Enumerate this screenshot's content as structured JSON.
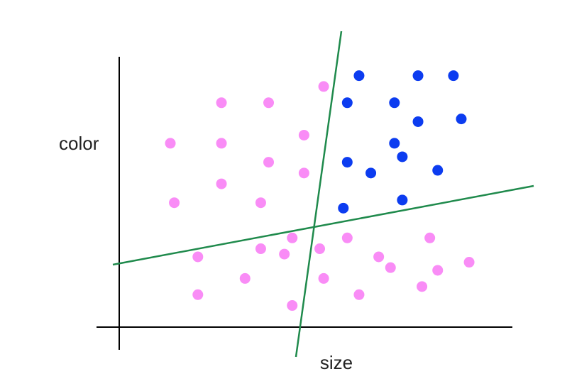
{
  "chart_data": {
    "type": "scatter",
    "x_label": "size",
    "y_label": "color",
    "xlim": [
      0,
      100
    ],
    "ylim": [
      0,
      100
    ],
    "series": [
      {
        "color": "#f98cf6",
        "x": [
          52,
          26,
          38,
          47,
          13,
          26,
          38,
          47,
          26,
          14,
          36,
          44,
          58,
          79,
          20,
          36,
          42,
          51,
          66,
          69,
          89,
          81,
          32,
          52,
          77,
          20,
          61,
          44
        ],
        "values": [
          89,
          83,
          83,
          71,
          68,
          68,
          61,
          57,
          53,
          46,
          46,
          33,
          33,
          33,
          26,
          29,
          27,
          29,
          26,
          22,
          24,
          21,
          18,
          18,
          15,
          12,
          12,
          8
        ]
      },
      {
        "color": "#0c3cf0",
        "x": [
          61,
          76,
          85,
          58,
          70,
          87,
          76,
          70,
          72,
          58,
          64,
          81,
          72,
          57
        ],
        "values": [
          93,
          93,
          93,
          83,
          83,
          77,
          76,
          68,
          63,
          61,
          57,
          58,
          47,
          44
        ]
      }
    ]
  }
}
